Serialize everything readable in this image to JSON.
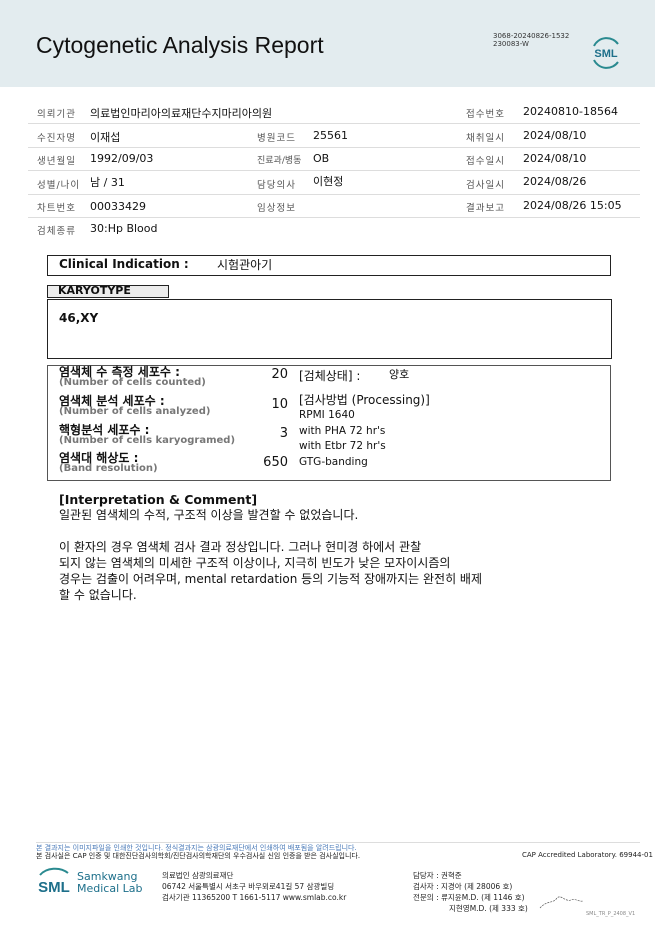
{
  "header": {
    "title": "Cytogenetic Analysis Report",
    "code_line1": "3068-20240826-1532",
    "code_line2": "230083-W",
    "logo_text": "SML"
  },
  "info": {
    "institution_label": "의뢰기관",
    "institution": "의료법인마리아의료재단수지마리아의원",
    "receipt_no_label": "접수번호",
    "receipt_no": "20240810-18564",
    "patient_label": "수진자명",
    "patient": "이재섭",
    "hospital_code_label": "병원코드",
    "hospital_code": "25561",
    "collected_label": "채취일시",
    "collected": "2024/08/10",
    "dob_label": "생년월일",
    "dob": "1992/09/03",
    "dept_label": "진료과/병동",
    "dept": "OB",
    "received_label": "접수일시",
    "received": "2024/08/10",
    "sex_age_label": "성별/나이",
    "sex_age": "남 / 31",
    "doctor_label": "담당의사",
    "doctor": "이현정",
    "tested_label": "검사일시",
    "tested": "2024/08/26",
    "chart_label": "차트번호",
    "chart": "00033429",
    "clinical_label": "임상정보",
    "clinical": "",
    "reported_label": "결과보고",
    "reported": "2024/08/26 15:05",
    "specimen_label": "검체종류",
    "specimen": "30:Hp Blood"
  },
  "clinical_indication": {
    "label": "Clinical Indication :",
    "value": "시험관아기"
  },
  "karyotype": {
    "label": "KARYOTYPE",
    "value": "46,XY"
  },
  "cells": [
    {
      "ko": "염색체 수 측정 세포수 :",
      "en": "(Number of cells counted)",
      "value": "20"
    },
    {
      "ko": "염색체 분석 세포수 :",
      "en": "(Number of cells analyzed)",
      "value": "10"
    },
    {
      "ko": "핵형분석 세포수 :",
      "en": "(Number of cells karyogramed)",
      "value": "3"
    },
    {
      "ko": "염색대 해상도 :",
      "en": "(Band resolution)",
      "value": "650"
    }
  ],
  "specimen_status": {
    "label": "[검체상태] :",
    "value": "양호"
  },
  "processing": {
    "label": "[검사방법 (Processing)]",
    "lines": [
      "RPMI 1640",
      "with PHA 72 hr's",
      "with Etbr 72 hr's",
      "GTG-banding"
    ]
  },
  "comment": {
    "title": "[Interpretation & Comment]",
    "line1": "일관된 염색체의 수적, 구조적 이상을 발견할 수 없었습니다.",
    "lines": [
      "이 환자의 경우 염색체 검사 결과 정상입니다. 그러나 현미경 하에서 관찰",
      "되지 않는 염색체의 미세한 구조적 이상이나, 지극히 빈도가 낮은 모자이시즘의",
      "경우는 검출이 어려우며, mental retardation 등의 기능적 장애까지는 완전히 배제",
      "할 수 없습니다."
    ]
  },
  "footer": {
    "notice1": "본 결과지는 이미지파일을 인쇄한 것입니다. 정식결과지는 삼광의료재단에서 인쇄하여 배포됨을 알려드립니다.",
    "notice2": "본 검사실은 CAP 인증 및 대한진단검사의학회/진단검사의학재단의 우수검사실 신임 인증을 받은 검사실입니다.",
    "cap": "CAP Accredited Laboratory. 69944-01",
    "brand1": "Samkwang",
    "brand2": "Medical Lab",
    "org": "의료법인 삼광의료재단",
    "address": "06742 서울특별시 서초구 바우뫼로41길 57 삼광빌딩",
    "contact": "검사기관 11365200 T 1661-5117 www.smlab.co.kr",
    "manager": "담당자 : 권혁준",
    "tester": "검사자 : 지경아 (제 28006 호)",
    "specialist1": "전문의 : 류지윤M.D. (제 1146 호)",
    "specialist2": "지현영M.D. (제 333 호)",
    "form_code": "SML_TR_P_2408_V1"
  }
}
